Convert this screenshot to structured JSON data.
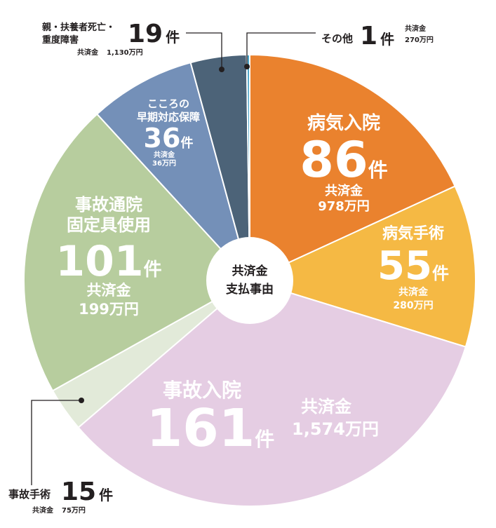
{
  "chart_data": {
    "type": "pie",
    "center_label": [
      "共済金",
      "支払事由"
    ],
    "slices": [
      {
        "label": "病気入院",
        "count": 86,
        "count_unit": "件",
        "amount_label": "共済金",
        "amount": "978万円",
        "color": "#ea822e"
      },
      {
        "label": "病気手術",
        "count": 55,
        "count_unit": "件",
        "amount_label": "共済金",
        "amount": "280万円",
        "color": "#f5b944"
      },
      {
        "label": "事故入院",
        "count": 161,
        "count_unit": "件",
        "amount_label": "共済金",
        "amount": "1,574万円",
        "color": "#e5cde3"
      },
      {
        "label": "事故手術",
        "count": 15,
        "count_unit": "件",
        "amount_label": "共済金",
        "amount": "75万円",
        "color": "#e2ead9"
      },
      {
        "label": "事故通院 固定具使用",
        "label_lines": [
          "事故通院",
          "固定具使用"
        ],
        "count": 101,
        "count_unit": "件",
        "amount_label": "共済金",
        "amount": "199万円",
        "color": "#b7cd9e"
      },
      {
        "label": "こころの 早期対応保障",
        "label_lines": [
          "こころの",
          "早期対応保障"
        ],
        "count": 36,
        "count_unit": "件",
        "amount_label": "共済金",
        "amount": "36万円",
        "color": "#7490b8"
      },
      {
        "label": "親・扶養者死亡・ 重度障害",
        "label_lines": [
          "親・扶養者死亡・",
          "重度障害"
        ],
        "count": 19,
        "count_unit": "件",
        "amount_label": "共済金",
        "amount": "1,130万円",
        "color": "#4c6378"
      },
      {
        "label": "その他",
        "count": 1,
        "count_unit": "件",
        "amount_label": "共済金",
        "amount": "270万円",
        "color": "#4aa3c8"
      }
    ]
  }
}
